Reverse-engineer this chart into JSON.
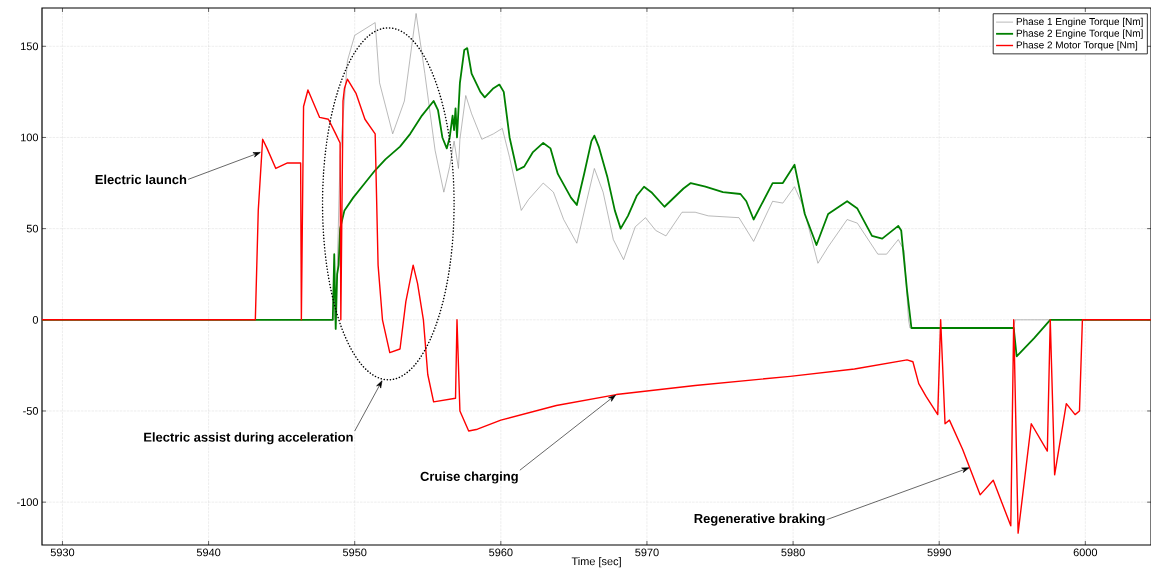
{
  "chart_data": {
    "type": "line",
    "xlabel": "Time [sec]",
    "xlim": [
      5928.6,
      6004.5
    ],
    "ylim": [
      -123.5,
      171
    ],
    "xticks": [
      5930,
      5940,
      5950,
      5960,
      5970,
      5980,
      5990,
      6000
    ],
    "yticks": [
      -100,
      -50,
      0,
      50,
      100,
      150
    ],
    "grid": true,
    "legend": "top right",
    "marker": "none",
    "line_style": "solid",
    "series": [
      {
        "name": "Phase 1 Engine Torque [Nm]",
        "color": "#8c8c8c",
        "x": [
          5928.6,
          5948.6,
          5948.8,
          5949.0,
          5949.5,
          5950.0,
          5951.4,
          5951.7,
          5952.6,
          5953.4,
          5954.2,
          5954.8,
          5955.5,
          5956.1,
          5956.5,
          5956.8,
          5957.1,
          5957.2,
          5957.6,
          5958.0,
          5958.7,
          5959.5,
          5960.1,
          5960.6,
          5961.4,
          5961.9,
          5962.9,
          5963.6,
          5964.3,
          5965.2,
          5965.9,
          5966.4,
          5967.0,
          5967.7,
          5968.4,
          5969.2,
          5969.9,
          5970.6,
          5971.3,
          5972.4,
          5973.3,
          5974.2,
          5976.3,
          5977.3,
          5978.3,
          5978.6,
          5979.3,
          5980.1,
          5980.7,
          5981.7,
          5982.4,
          5983.7,
          5984.4,
          5985.8,
          5986.4,
          5987.2,
          5987.6,
          5987.9,
          5988.0,
          5995.1,
          5995.2,
          6004.5
        ],
        "values": [
          0,
          0,
          26,
          90,
          142,
          156,
          163,
          130,
          102,
          120,
          168,
          135,
          93,
          70,
          84,
          98,
          83,
          99,
          123,
          113,
          99,
          102,
          105,
          89,
          60,
          66,
          75,
          70,
          55,
          42,
          66,
          83,
          70,
          44,
          33,
          51,
          56,
          49,
          46,
          59,
          59,
          57,
          56,
          43,
          60,
          65,
          64,
          73,
          62,
          31,
          40,
          55,
          53,
          36,
          36,
          44,
          38,
          0,
          -4.5,
          -4.5,
          0,
          0
        ]
      },
      {
        "name": "Phase 2 Engine Torque [Nm]",
        "color": "#008000",
        "x": [
          5928.6,
          5948.5,
          5948.6,
          5948.7,
          5948.8,
          5948.9,
          5949.0,
          5949.3,
          5949.9,
          5950.7,
          5951.4,
          5952.1,
          5953.1,
          5953.8,
          5954.6,
          5955.4,
          5955.7,
          5956.0,
          5956.3,
          5956.5,
          5956.7,
          5956.8,
          5956.9,
          5957.0,
          5957.2,
          5957.5,
          5957.7,
          5958.0,
          5958.6,
          5958.9,
          5959.5,
          5959.9,
          5960.2,
          5960.6,
          5961.1,
          5961.6,
          5962.2,
          5962.9,
          5963.4,
          5963.9,
          5964.8,
          5965.2,
          5965.7,
          5966.2,
          5966.4,
          5966.7,
          5967.3,
          5967.8,
          5968.2,
          5968.7,
          5969.3,
          5969.8,
          5970.3,
          5971.2,
          5972.5,
          5973.0,
          5974.0,
          5975.2,
          5976.4,
          5976.8,
          5977.3,
          5978.6,
          5979.3,
          5980.1,
          5980.8,
          5981.6,
          5982.4,
          5983.7,
          5984.4,
          5985.4,
          5986.1,
          5987.2,
          5987.4,
          5987.8,
          5988.1,
          5995.1,
          5995.3,
          5996.5,
          5997.6,
          6004.5
        ],
        "values": [
          0,
          0,
          36,
          -5,
          25,
          30,
          50,
          60,
          67,
          75,
          82,
          88,
          95,
          102,
          112,
          120,
          115,
          100,
          94,
          100,
          112,
          104,
          116,
          100,
          130,
          148,
          149,
          135,
          125,
          122,
          127,
          129,
          125,
          100,
          82,
          84,
          92,
          97,
          94,
          80,
          67,
          63,
          80,
          98,
          101,
          95,
          78,
          60,
          50,
          57,
          68,
          73,
          70,
          62,
          72,
          75,
          73,
          70,
          69,
          65,
          55,
          75,
          75,
          85,
          58,
          41,
          58,
          65,
          61,
          46,
          44.5,
          51.5,
          49,
          16,
          -4.5,
          -4.5,
          -20,
          -10,
          0,
          0
        ]
      },
      {
        "name": "Phase 2 Motor Torque [Nm]",
        "color": "#ff0000",
        "x": [
          5928.6,
          5943.2,
          5943.4,
          5943.7,
          5944.0,
          5944.6,
          5945.4,
          5946.3,
          5946.35,
          5946.5,
          5946.8,
          5947.6,
          5948.2,
          5948.7,
          5949.0,
          5949.05,
          5949.2,
          5949.3,
          5949.5,
          5950.1,
          5950.7,
          5951.4,
          5951.6,
          5951.9,
          5952.4,
          5953.1,
          5953.5,
          5954.0,
          5954.3,
          5954.7,
          5955.0,
          5955.4,
          5956.9,
          5957.0,
          5957.2,
          5957.8,
          5958.4,
          5960.0,
          5963.8,
          5967.9,
          5973.3,
          5979.8,
          5984.2,
          5987.8,
          5988.2,
          5988.6,
          5989.1,
          5989.9,
          5990.1,
          5990.4,
          5990.7,
          5991.6,
          5992.8,
          5993.7,
          5994.9,
          5995.1,
          5995.4,
          5996.3,
          5997.4,
          5997.6,
          5997.9,
          5998.7,
          5999.3,
          5999.6,
          5999.8,
          6004.5
        ],
        "values": [
          0,
          0,
          60,
          99,
          94,
          83,
          86,
          86,
          0,
          117,
          126,
          111,
          110,
          102,
          97,
          0,
          120,
          127,
          132,
          124,
          110,
          102,
          30,
          0,
          -18,
          -16,
          10,
          30,
          20,
          0,
          -30,
          -45,
          -43,
          0,
          -50,
          -61,
          -60,
          -55,
          -47,
          -41,
          -36,
          -31,
          -27,
          -22,
          -23,
          -35,
          -42,
          -52,
          0,
          -57,
          -55,
          -71,
          -96,
          -88,
          -113,
          0,
          -117,
          -57,
          -72,
          0,
          -85,
          -46,
          -52,
          -50,
          0,
          0
        ]
      }
    ],
    "annotations": [
      {
        "text": "Electric launch",
        "x": 5943.6,
        "y": 92
      },
      "Electric assist during acceleration",
      {
        "text": "Cruise charging",
        "x": 5967.9,
        "y": -41
      },
      {
        "text": "Regenerative braking",
        "x": 5992.1,
        "y": -81
      }
    ]
  }
}
